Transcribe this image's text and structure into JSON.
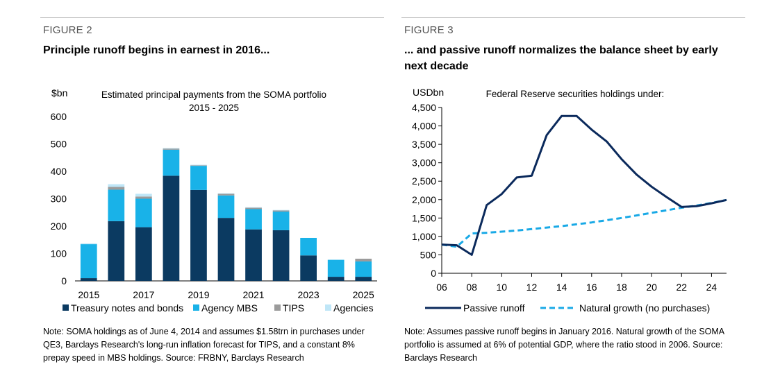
{
  "figures": [
    {
      "label": "FIGURE 2",
      "title": "Principle runoff begins in earnest in 2016...",
      "unit": "$bn",
      "chart_title_line1": "Estimated principal payments from the SOMA portfolio",
      "chart_title_line2": "2015 - 2025",
      "note": "Note: SOMA holdings as of June 4, 2014 and assumes $1.58trn in purchases under QE3, Barclays Research's long-run inflation forecast for TIPS, and a constant 8% prepay speed in MBS holdings. Source: FRBNY, Barclays Research"
    },
    {
      "label": "FIGURE 3",
      "title": "... and passive runoff normalizes the balance sheet by early next decade",
      "unit": "USDbn",
      "chart_title": "Federal Reserve securities holdings under:",
      "note": "Note: Assumes passive runoff begins in January 2016. Natural growth of the SOMA portfolio is assumed at 6% of potential GDP, where the ratio stood in 2006. Source: Barclays Research"
    }
  ],
  "chart_data": [
    {
      "type": "bar",
      "stacked": true,
      "title": "Estimated principal payments from the SOMA portfolio 2015 - 2025",
      "ylabel": "$bn",
      "ylim": [
        0,
        600
      ],
      "yticks": [
        0,
        100,
        200,
        300,
        400,
        500,
        600
      ],
      "categories": [
        "2015",
        "2016",
        "2017",
        "2018",
        "2019",
        "2020",
        "2021",
        "2022",
        "2023",
        "2024",
        "2025"
      ],
      "xtick_labels": [
        "2015",
        "2017",
        "2019",
        "2021",
        "2023",
        "2025"
      ],
      "legend_position": "bottom",
      "series": [
        {
          "name": "Treasury notes and bonds",
          "color": "#0b3a61",
          "values": [
            10,
            218,
            196,
            384,
            332,
            230,
            188,
            185,
            93,
            15,
            15
          ]
        },
        {
          "name": "Agency MBS",
          "color": "#19b2e8",
          "values": [
            124,
            115,
            104,
            95,
            88,
            82,
            74,
            68,
            64,
            62,
            56
          ]
        },
        {
          "name": "TIPS",
          "color": "#9b9b9b",
          "values": [
            0,
            10,
            8,
            4,
            2,
            6,
            5,
            4,
            0,
            0,
            10
          ]
        },
        {
          "name": "Agencies",
          "color": "#bfe6f7",
          "values": [
            3,
            10,
            10,
            2,
            2,
            2,
            2,
            2,
            0,
            0,
            0
          ]
        }
      ]
    },
    {
      "type": "line",
      "title": "Federal Reserve securities holdings under:",
      "ylabel": "USDbn",
      "ylim": [
        0,
        4500
      ],
      "yticks": [
        0,
        500,
        1000,
        1500,
        2000,
        2500,
        3000,
        3500,
        4000,
        4500
      ],
      "ytick_labels": [
        "0",
        "500",
        "1,000",
        "1,500",
        "2,000",
        "2,500",
        "3,000",
        "3,500",
        "4,000",
        "4,500"
      ],
      "xlim": [
        6,
        25
      ],
      "xticks": [
        6,
        8,
        10,
        12,
        14,
        16,
        18,
        20,
        22,
        24
      ],
      "xtick_labels": [
        "06",
        "08",
        "10",
        "12",
        "14",
        "16",
        "18",
        "20",
        "22",
        "24"
      ],
      "legend_position": "bottom",
      "series": [
        {
          "name": "Passive runoff",
          "color": "#0b2a5c",
          "style": "solid",
          "x": [
            6,
            7,
            8,
            9,
            10,
            11,
            12,
            13,
            14,
            15,
            16,
            17,
            18,
            19,
            20,
            21,
            22,
            23,
            24,
            25
          ],
          "y": [
            780,
            760,
            500,
            1850,
            2150,
            2600,
            2650,
            3750,
            4270,
            4270,
            3900,
            3580,
            3100,
            2680,
            2350,
            2070,
            1800,
            1820,
            1900,
            1990
          ]
        },
        {
          "name": "Natural growth (no purchases)",
          "color": "#19a9e6",
          "style": "dashed",
          "x": [
            6,
            7,
            8,
            9,
            10,
            11,
            12,
            13,
            14,
            15,
            16,
            17,
            18,
            19,
            20,
            21,
            22,
            23,
            24,
            25
          ],
          "y": [
            780,
            720,
            1080,
            1100,
            1130,
            1160,
            1200,
            1240,
            1280,
            1330,
            1380,
            1440,
            1500,
            1570,
            1640,
            1710,
            1780,
            1840,
            1910,
            1990
          ]
        }
      ]
    }
  ]
}
